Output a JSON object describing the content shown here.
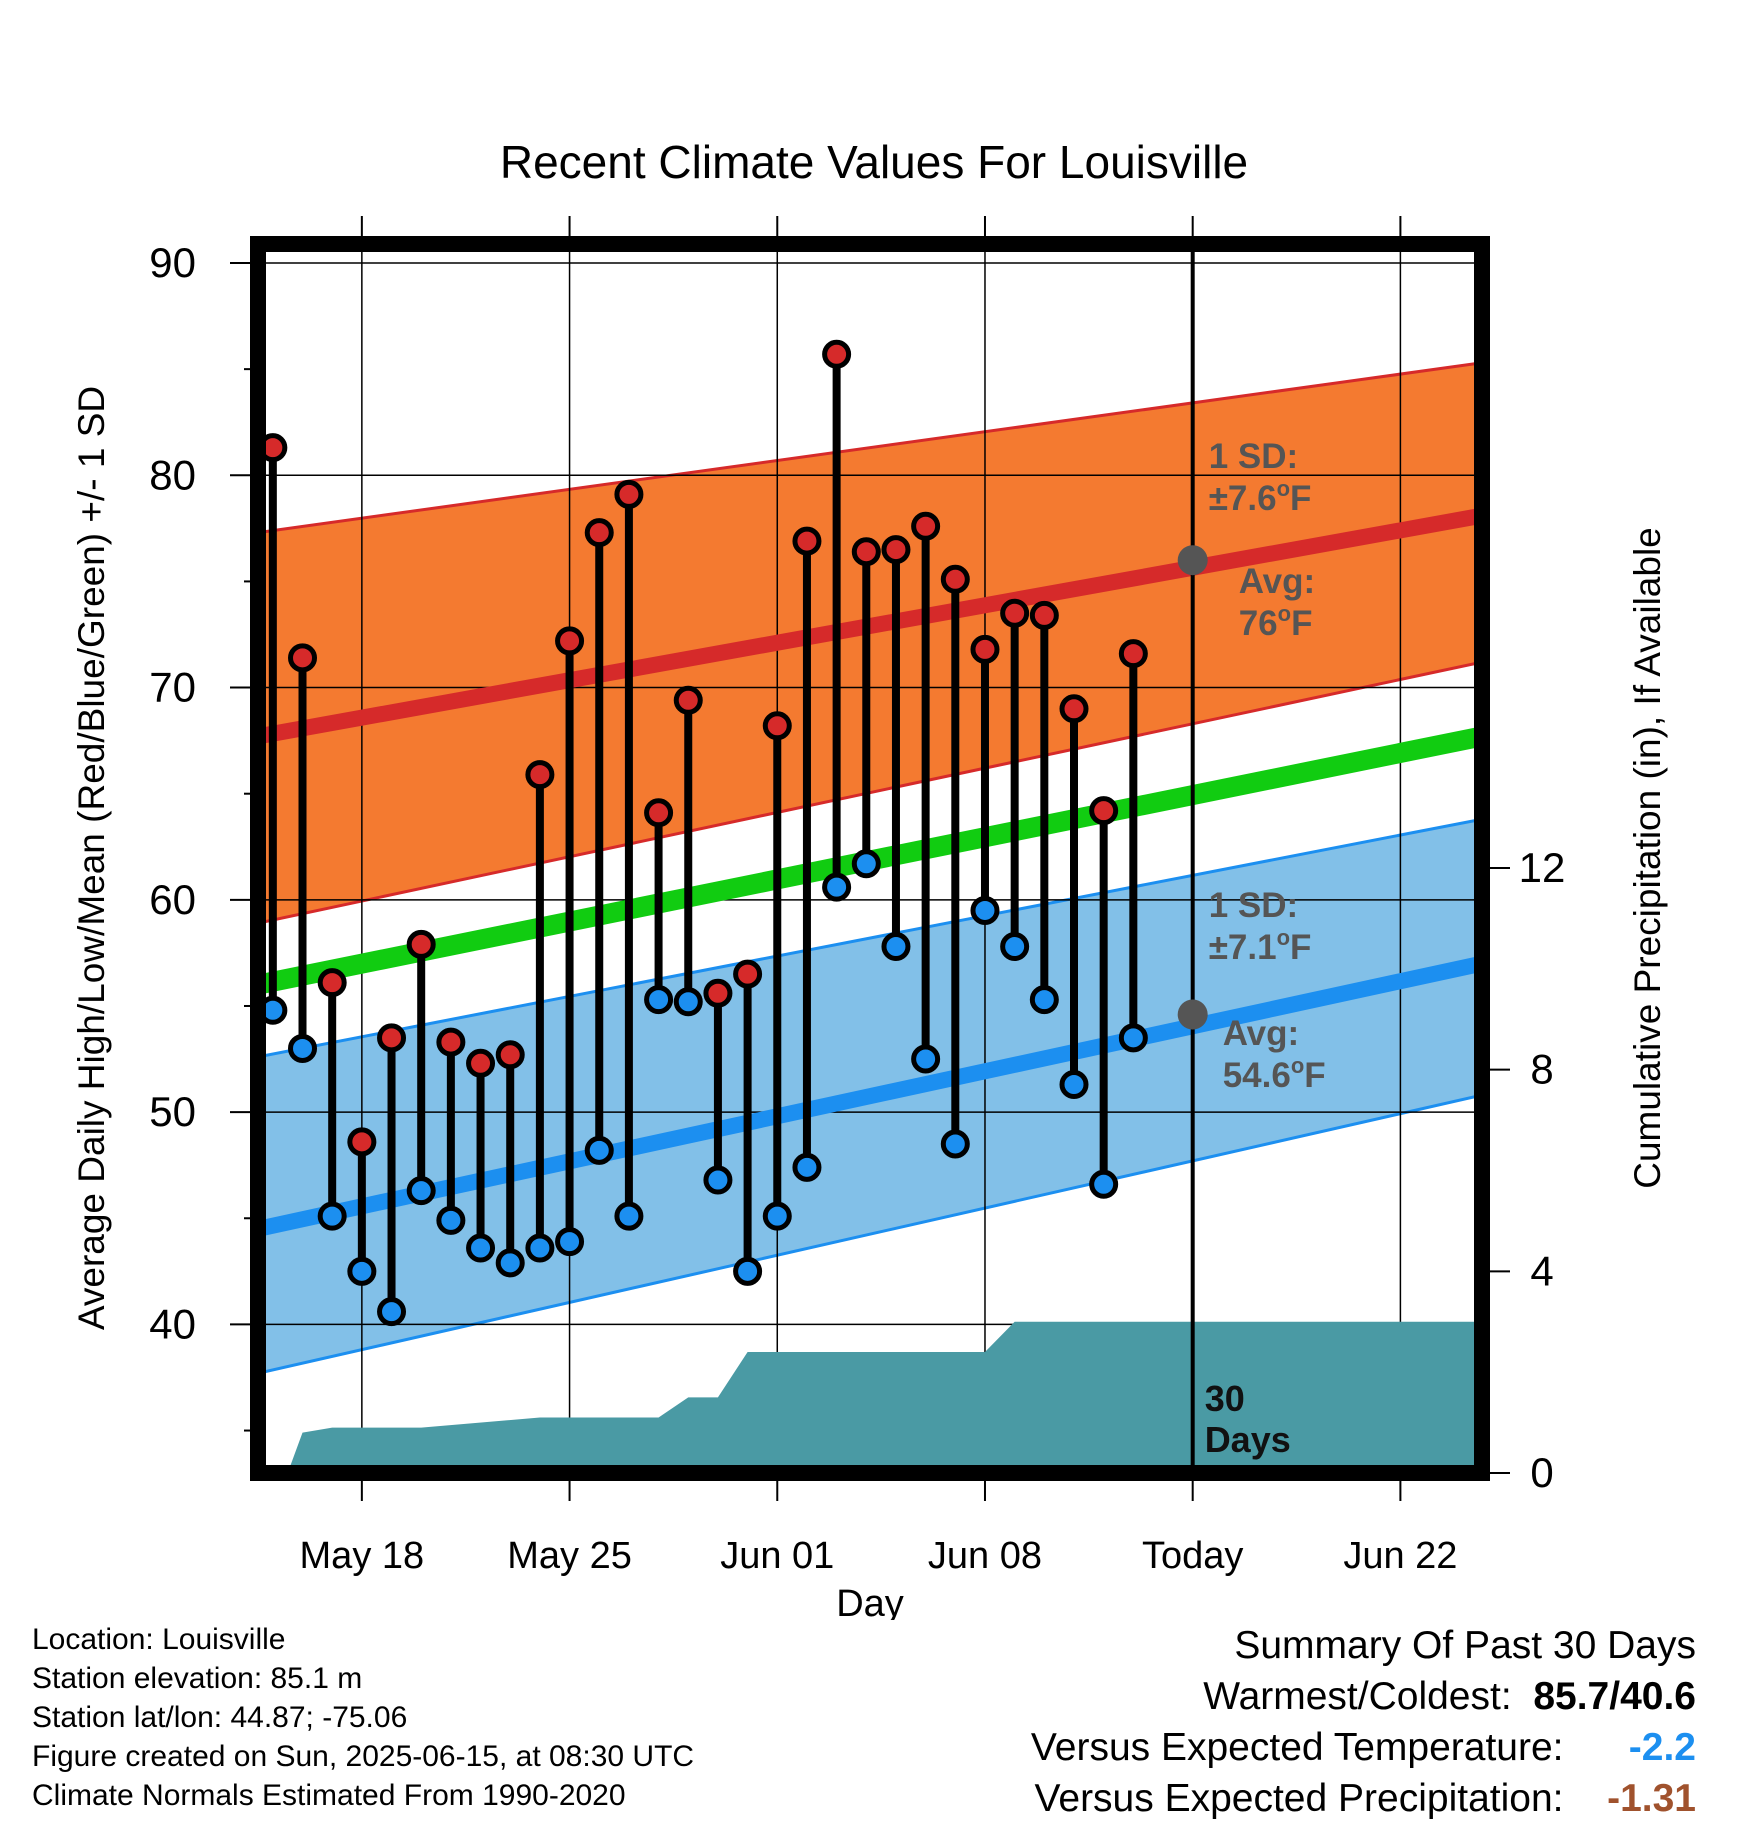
{
  "chart_data": {
    "type": "line",
    "title": "Recent Climate Values For Louisville",
    "xlabel": "Day",
    "ylabel": "Average Daily High/Low/Mean (Red/Blue/Green) +/- 1 SD",
    "y2label": "Cumulative Precipitation (in), If Available",
    "ylim": [
      33,
      90
    ],
    "y2lim": [
      0,
      24
    ],
    "y_ticks": [
      "40",
      "50",
      "60",
      "70",
      "80",
      "90"
    ],
    "y2_ticks": [
      "0",
      "4",
      "8",
      "12"
    ],
    "x_ticks": [
      "May 18",
      "May 25",
      "Jun 01",
      "Jun 08",
      "Today",
      "Jun 22"
    ],
    "x_tick_dates": [
      "2025-05-18",
      "2025-05-25",
      "2025-06-01",
      "2025-06-08",
      "2025-06-15",
      "2025-06-22"
    ],
    "x_range": [
      "2025-05-14T12:00",
      "2025-06-24T18:00"
    ],
    "grid": true,
    "colors": {
      "high_band": "#f47a30",
      "high_avg": "#d62a2a",
      "low_band": "#82c0e8",
      "low_avg": "#1c8ff0",
      "mean": "#11cc11",
      "precip": "#4a9aa4",
      "marker_high": "#d62a2a",
      "marker_low": "#1c8ff0",
      "annot": "#555555"
    },
    "normals": {
      "dates": [
        "2025-05-14T12:00",
        "2025-06-24T18:00"
      ],
      "high_avg": [
        67.7,
        78.1
      ],
      "high_upper": [
        77.3,
        85.3
      ],
      "high_lower": [
        58.9,
        71.2
      ],
      "mean": [
        56.0,
        67.7
      ],
      "low_avg": [
        44.5,
        57.0
      ],
      "low_upper": [
        52.6,
        63.8
      ],
      "low_lower": [
        37.7,
        50.8
      ]
    },
    "series": [
      {
        "name": "High",
        "dates": [
          "2025-05-15",
          "2025-05-16",
          "2025-05-17",
          "2025-05-18",
          "2025-05-19",
          "2025-05-20",
          "2025-05-21",
          "2025-05-22",
          "2025-05-23",
          "2025-05-24",
          "2025-05-25",
          "2025-05-26",
          "2025-05-27",
          "2025-05-28",
          "2025-05-29",
          "2025-05-30",
          "2025-05-31",
          "2025-06-01",
          "2025-06-02",
          "2025-06-03",
          "2025-06-04",
          "2025-06-05",
          "2025-06-06",
          "2025-06-07",
          "2025-06-08",
          "2025-06-09",
          "2025-06-10",
          "2025-06-11",
          "2025-06-12",
          "2025-06-13",
          "2025-06-14"
        ],
        "values": [
          81.3,
          71.4,
          56.1,
          48.6,
          53.5,
          57.9,
          53.3,
          52.3,
          52.7,
          65.9,
          72.2,
          77.3,
          79.1,
          64.1,
          69.4,
          55.6,
          56.5,
          68.2,
          76.9,
          85.7,
          76.4,
          76.5,
          77.6,
          75.1,
          71.8,
          73.5,
          73.4,
          69.0,
          64.2,
          71.6,
          null
        ]
      },
      {
        "name": "Low",
        "dates": [
          "2025-05-15",
          "2025-05-16",
          "2025-05-17",
          "2025-05-18",
          "2025-05-19",
          "2025-05-20",
          "2025-05-21",
          "2025-05-22",
          "2025-05-23",
          "2025-05-24",
          "2025-05-25",
          "2025-05-26",
          "2025-05-27",
          "2025-05-28",
          "2025-05-29",
          "2025-05-30",
          "2025-05-31",
          "2025-06-01",
          "2025-06-02",
          "2025-06-03",
          "2025-06-04",
          "2025-06-05",
          "2025-06-06",
          "2025-06-07",
          "2025-06-08",
          "2025-06-09",
          "2025-06-10",
          "2025-06-11",
          "2025-06-12",
          "2025-06-13",
          "2025-06-14"
        ],
        "values": [
          54.8,
          53.0,
          45.1,
          42.5,
          40.6,
          46.3,
          44.9,
          43.6,
          42.9,
          43.6,
          43.9,
          48.2,
          45.1,
          55.3,
          55.2,
          46.8,
          42.5,
          45.1,
          47.4,
          60.6,
          61.7,
          57.8,
          52.5,
          48.5,
          59.5,
          57.8,
          55.3,
          51.3,
          46.6,
          53.5,
          null
        ]
      }
    ],
    "precipitation": {
      "dates": [
        "2025-05-15T12:00",
        "2025-05-16",
        "2025-05-17",
        "2025-05-20",
        "2025-05-24",
        "2025-05-28",
        "2025-05-29",
        "2025-05-30",
        "2025-05-31",
        "2025-06-08",
        "2025-06-09",
        "2025-06-15"
      ],
      "values": [
        0.0,
        0.8,
        0.9,
        0.9,
        1.1,
        1.1,
        1.5,
        1.5,
        2.4,
        2.4,
        3.0,
        3.0
      ],
      "extend_to": "2025-06-24T18:00"
    },
    "annotations": {
      "today": "2025-06-15",
      "today_high_avg": 76,
      "today_low_avg": 54.6,
      "high_sd_label": "1 SD:",
      "high_sd_value": "±7.6",
      "high_avg_label": "Avg:",
      "high_avg_value": "76",
      "low_sd_label": "1 SD:",
      "low_sd_value": "±7.1",
      "low_avg_label": "Avg:",
      "low_avg_value": "54.6",
      "unit": "F",
      "degree": "o",
      "days_line1": "30",
      "days_line2": "Days"
    }
  },
  "info": {
    "location": "Location: Louisville",
    "elevation": "Station elevation: 85.1 m",
    "latlon": "Station lat/lon: 44.87; -75.06",
    "created": "Figure created on Sun, 2025-06-15, at 08:30 UTC",
    "normals": "Climate Normals Estimated From 1990-2020"
  },
  "summary": {
    "title": "Summary Of Past 30 Days",
    "warmest_label": "Warmest/Coldest:",
    "warmest": "85.7",
    "slash": "/",
    "coldest": "40.6",
    "temp_label": "Versus Expected Temperature:",
    "temp_value": "-2.2",
    "temp_color": "#1c8ff0",
    "precip_label": "Versus Expected Precipitation:",
    "precip_value": "-1.31",
    "precip_color": "#a0522d"
  }
}
